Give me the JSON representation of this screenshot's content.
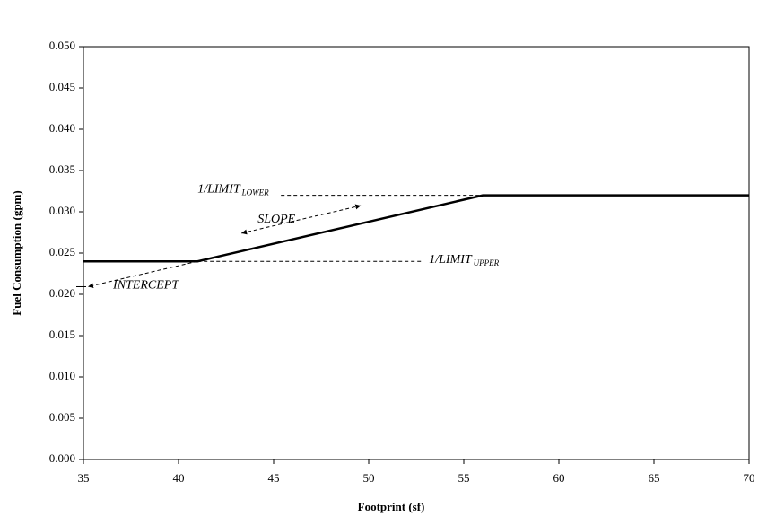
{
  "chart_data": {
    "type": "line",
    "x": [
      35,
      41,
      56,
      70
    ],
    "values": [
      0.024,
      0.024,
      0.032,
      0.032
    ],
    "color": "#000000",
    "xlabel": "Footprint (sf)",
    "ylabel": "Fuel Consumption (gpm)",
    "xlim": [
      35,
      70
    ],
    "xticks": [
      35,
      40,
      45,
      50,
      55,
      60,
      65,
      70
    ],
    "ylim": [
      0,
      0.05
    ],
    "yticks": [
      {
        "value": 0,
        "label": "0.000"
      },
      {
        "value": 0.005,
        "label": "0.005"
      },
      {
        "value": 0.01,
        "label": "0.010"
      },
      {
        "value": 0.015,
        "label": "0.015"
      },
      {
        "value": 0.02,
        "label": "0.020"
      },
      {
        "value": 0.025,
        "label": "0.025"
      },
      {
        "value": 0.03,
        "label": "0.030"
      },
      {
        "value": 0.035,
        "label": "0.035"
      },
      {
        "value": 0.04,
        "label": "0.040"
      },
      {
        "value": 0.045,
        "label": "0.045"
      },
      {
        "value": 0.05,
        "label": "0.050"
      }
    ],
    "grid": false,
    "annotations": [
      {
        "text": "1/LIMIT",
        "subscript": "LOWER"
      },
      {
        "text": "SLOPE"
      },
      {
        "text": "1/LIMIT",
        "subscript": "UPPER"
      },
      {
        "text": "INTERCEPT"
      }
    ]
  }
}
